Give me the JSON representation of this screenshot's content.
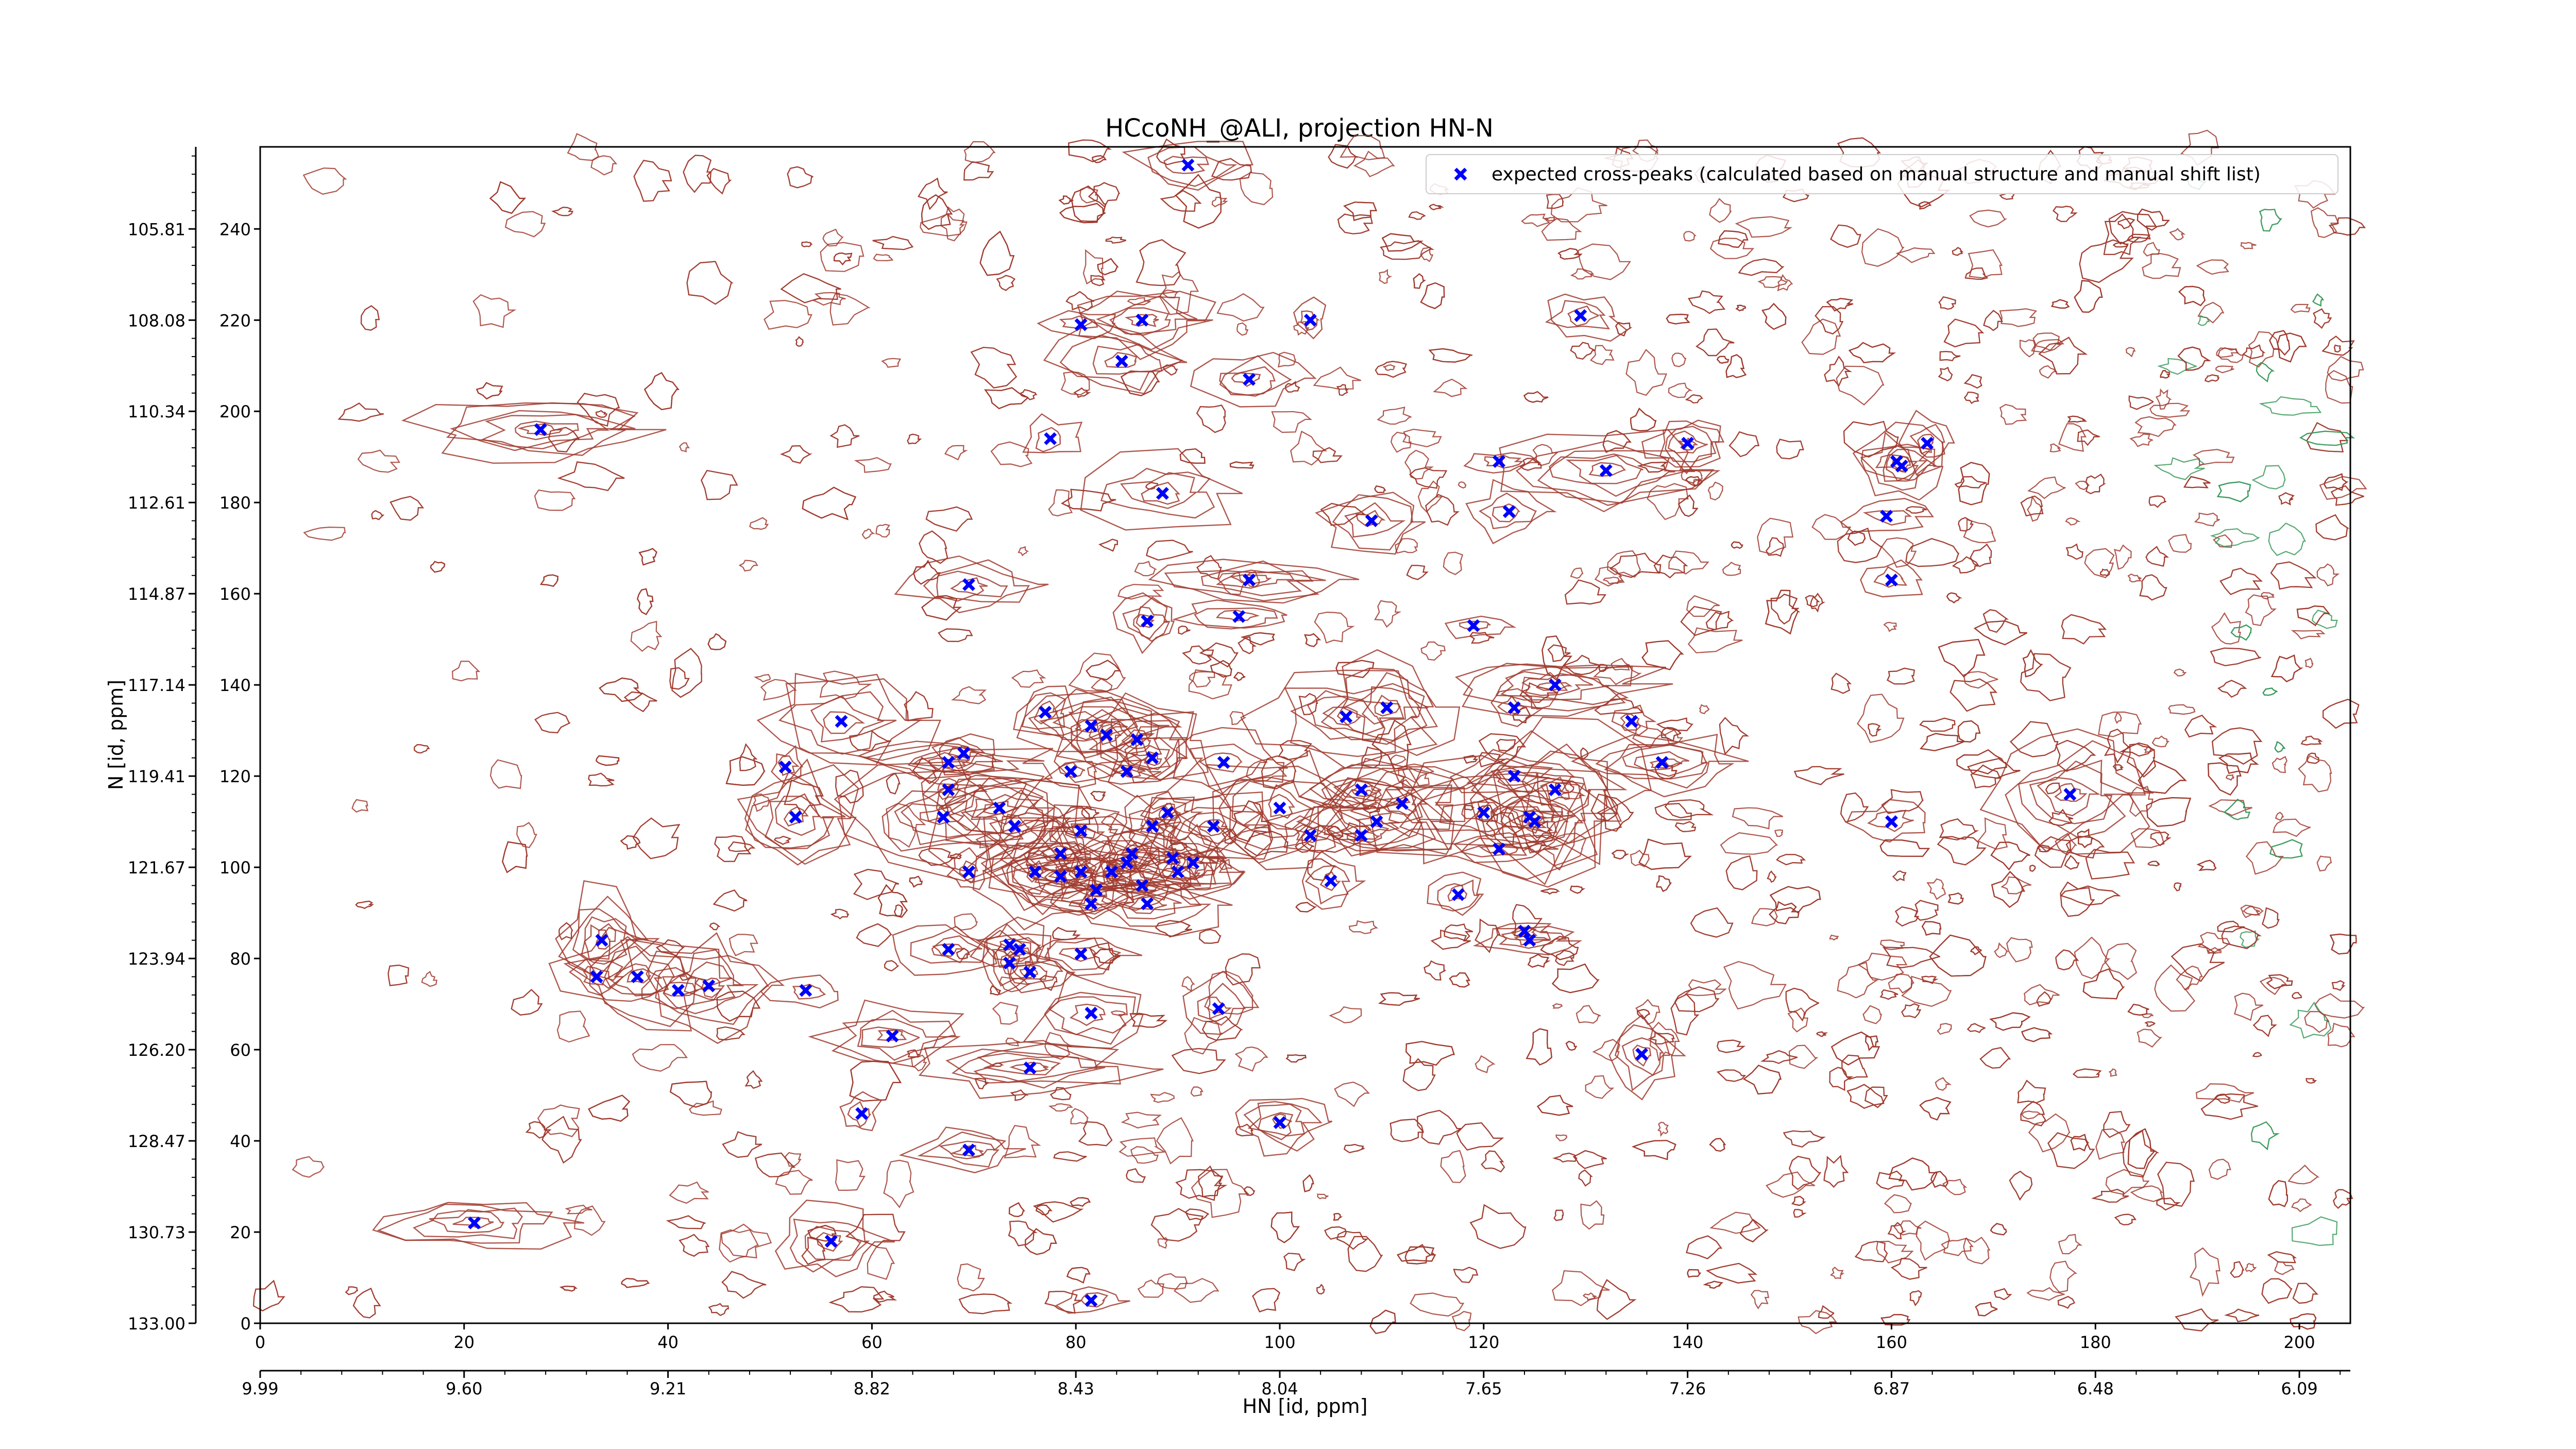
{
  "chart_data": {
    "type": "scatter",
    "title": "HCcoNH_@ALI, projection HN-N",
    "xlabel": "HN [id, ppm]",
    "ylabel": "N [id, ppm]",
    "xlim": [
      0,
      205
    ],
    "ylim": [
      0,
      258
    ],
    "x_index_ticks": [
      "0",
      "20",
      "40",
      "60",
      "80",
      "100",
      "120",
      "140",
      "160",
      "180",
      "200"
    ],
    "x_index_tick_values": [
      0,
      20,
      40,
      60,
      80,
      100,
      120,
      140,
      160,
      180,
      200
    ],
    "x_ppm_ticks": [
      "9.99",
      "9.60",
      "9.21",
      "8.82",
      "8.43",
      "8.04",
      "7.65",
      "7.26",
      "6.87",
      "6.48",
      "6.09"
    ],
    "x_ppm_tick_values": [
      0,
      20,
      40,
      60,
      80,
      100,
      120,
      140,
      160,
      180,
      200
    ],
    "y_index_ticks": [
      "0",
      "20",
      "40",
      "60",
      "80",
      "100",
      "120",
      "140",
      "160",
      "180",
      "200",
      "220",
      "240"
    ],
    "y_index_tick_values": [
      0,
      20,
      40,
      60,
      80,
      100,
      120,
      140,
      160,
      180,
      200,
      220,
      240
    ],
    "y_ppm_ticks": [
      "133.00",
      "130.73",
      "128.47",
      "126.20",
      "123.94",
      "121.67",
      "119.41",
      "117.14",
      "114.87",
      "112.61",
      "110.34",
      "108.08",
      "105.81"
    ],
    "y_ppm_tick_values": [
      0,
      20,
      40,
      60,
      80,
      100,
      120,
      140,
      160,
      180,
      200,
      220,
      240
    ],
    "grid": false,
    "legend_position": "top-right",
    "series": [
      {
        "name": "expected cross-peaks (calculated based on manual structure and manual shift list)",
        "color": "#0000ff",
        "marker": "x",
        "points": [
          [
            91,
            254
          ],
          [
            80.5,
            219
          ],
          [
            86.5,
            220
          ],
          [
            103,
            220
          ],
          [
            84.5,
            211
          ],
          [
            97,
            207
          ],
          [
            129.5,
            221
          ],
          [
            27.5,
            196
          ],
          [
            77.5,
            194
          ],
          [
            140,
            193
          ],
          [
            163.5,
            193
          ],
          [
            121.5,
            189
          ],
          [
            132,
            187
          ],
          [
            160.5,
            189
          ],
          [
            161,
            188
          ],
          [
            88.5,
            182
          ],
          [
            122.5,
            178
          ],
          [
            159.5,
            177
          ],
          [
            109,
            176
          ],
          [
            69.5,
            162
          ],
          [
            97,
            163
          ],
          [
            160,
            163
          ],
          [
            96,
            155
          ],
          [
            87,
            154
          ],
          [
            119,
            153
          ],
          [
            127,
            140
          ],
          [
            77,
            134
          ],
          [
            106.5,
            133
          ],
          [
            110.5,
            135
          ],
          [
            123,
            135
          ],
          [
            134.5,
            132
          ],
          [
            57,
            132
          ],
          [
            81.5,
            131
          ],
          [
            83,
            129
          ],
          [
            86,
            128
          ],
          [
            69,
            125
          ],
          [
            87.5,
            124
          ],
          [
            94.5,
            123
          ],
          [
            67.5,
            123
          ],
          [
            79.5,
            121
          ],
          [
            51.5,
            122
          ],
          [
            85,
            121
          ],
          [
            137.5,
            123
          ],
          [
            123,
            120
          ],
          [
            67.5,
            117
          ],
          [
            108,
            117
          ],
          [
            127,
            117
          ],
          [
            177.5,
            116
          ],
          [
            72.5,
            113
          ],
          [
            100,
            113
          ],
          [
            112,
            114
          ],
          [
            89,
            112
          ],
          [
            109.5,
            110
          ],
          [
            120,
            112
          ],
          [
            124.5,
            111
          ],
          [
            125,
            110
          ],
          [
            160,
            110
          ],
          [
            52.5,
            111
          ],
          [
            67,
            111
          ],
          [
            74,
            109
          ],
          [
            80.5,
            108
          ],
          [
            103,
            107
          ],
          [
            108,
            107
          ],
          [
            87.5,
            109
          ],
          [
            93.5,
            109
          ],
          [
            78.5,
            103
          ],
          [
            89.5,
            102
          ],
          [
            85.5,
            103
          ],
          [
            85,
            101
          ],
          [
            121.5,
            104
          ],
          [
            80.5,
            99
          ],
          [
            90,
            99
          ],
          [
            91.5,
            101
          ],
          [
            69.5,
            99
          ],
          [
            76,
            99
          ],
          [
            78.5,
            98
          ],
          [
            83.5,
            99
          ],
          [
            82,
            95
          ],
          [
            86.5,
            96
          ],
          [
            105,
            97
          ],
          [
            117.5,
            94
          ],
          [
            87,
            92
          ],
          [
            81.5,
            92
          ],
          [
            124,
            86
          ],
          [
            124.5,
            84
          ],
          [
            73.5,
            83
          ],
          [
            74.5,
            82
          ],
          [
            67.5,
            82
          ],
          [
            33.5,
            84
          ],
          [
            80.5,
            81
          ],
          [
            73.5,
            79
          ],
          [
            75.5,
            77
          ],
          [
            33,
            76
          ],
          [
            37,
            76
          ],
          [
            44,
            74
          ],
          [
            41,
            73
          ],
          [
            53.5,
            73
          ],
          [
            81.5,
            68
          ],
          [
            94,
            69
          ],
          [
            62,
            63
          ],
          [
            135.5,
            59
          ],
          [
            75.5,
            56
          ],
          [
            59,
            46
          ],
          [
            100,
            44
          ],
          [
            69.5,
            38
          ],
          [
            21,
            22
          ],
          [
            56,
            18
          ],
          [
            81.5,
            5
          ]
        ]
      }
    ]
  }
}
